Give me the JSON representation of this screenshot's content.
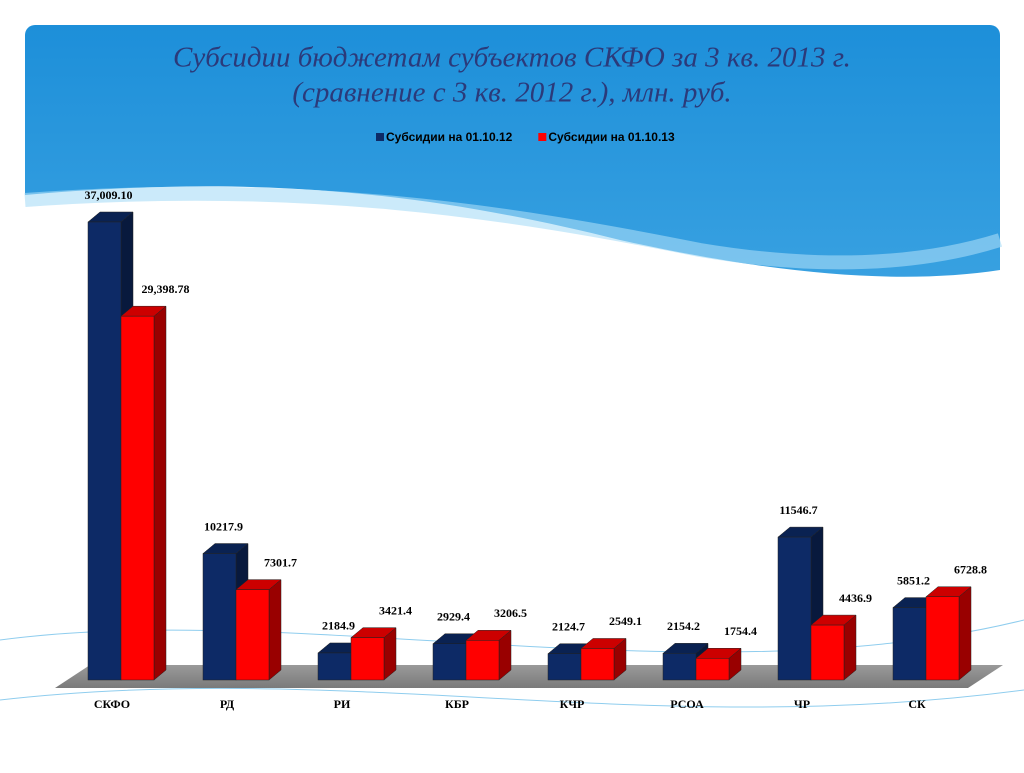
{
  "chart_data": {
    "type": "bar3d",
    "title": "Субсидии бюджетам субъектов СКФО за 3 кв. 2013 г.",
    "subtitle": "(сравнение с 3 кв. 2012 г.), млн. руб.",
    "categories": [
      "СКФО",
      "РД",
      "РИ",
      "КБР",
      "КЧР",
      "РСОА",
      "ЧР",
      "СК"
    ],
    "series": [
      {
        "name": "Субсидии на 01.10.12",
        "color": "#0d2a66",
        "values": [
          37009.1,
          10217.9,
          2184.9,
          2929.4,
          2124.7,
          2154.2,
          11546.7,
          5851.2
        ],
        "value_labels": [
          "37,009.10",
          "10217.9",
          "2184.9",
          "2929.4",
          "2124.7",
          "2154.2",
          "11546.7",
          "5851.2"
        ]
      },
      {
        "name": "Субсидии на 01.10.13",
        "color": "#ff0000",
        "values": [
          29398.78,
          7301.7,
          3421.4,
          3206.5,
          2549.1,
          1754.4,
          4436.9,
          6728.8
        ],
        "value_labels": [
          "29,398.78",
          "7301.7",
          "3421.4",
          "3206.5",
          "2549.1",
          "1754.4",
          "4436.9",
          "6728.8"
        ]
      }
    ],
    "legend": "top"
  }
}
